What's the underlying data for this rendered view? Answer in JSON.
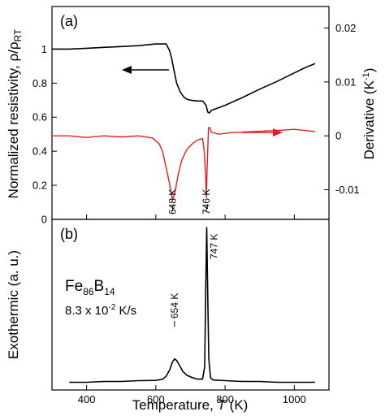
{
  "colors": {
    "black_curve": "#000000",
    "red_curve": "#e02020",
    "arrow_black": "#000000",
    "arrow_red": "#e02020"
  },
  "chart_data": [
    {
      "type": "line",
      "panel_label": "(a)",
      "ylabel": "Normalized resistivity, ρ/ρ",
      "ylabel_sub": "RT",
      "y2label": "Derivative (K",
      "y2label_sup": "-1",
      "y2label_end": ")",
      "xlim": [
        300,
        1100
      ],
      "ylim": [
        0,
        1.25
      ],
      "y2lim": [
        -0.0155,
        0.024
      ],
      "yticks": [
        "0",
        "0.2",
        "0.4",
        "0.6",
        "0.8",
        "1"
      ],
      "y2ticks": [
        "-0.01",
        "0",
        "0.01",
        "0.02"
      ],
      "series": [
        {
          "axis": "left",
          "color": "#000000",
          "x": [
            300,
            350,
            400,
            450,
            500,
            550,
            600,
            620,
            630,
            635,
            640,
            645,
            650,
            655,
            660,
            670,
            680,
            690,
            700,
            720,
            735,
            745,
            750,
            755,
            760,
            800,
            850,
            900,
            950,
            1000,
            1030,
            1060
          ],
          "y": [
            1.0,
            1.0,
            1.005,
            1.01,
            1.015,
            1.02,
            1.03,
            1.03,
            1.03,
            1.01,
            0.99,
            0.95,
            0.9,
            0.85,
            0.8,
            0.75,
            0.72,
            0.705,
            0.7,
            0.695,
            0.695,
            0.67,
            0.63,
            0.625,
            0.64,
            0.67,
            0.715,
            0.765,
            0.81,
            0.86,
            0.89,
            0.915
          ]
        },
        {
          "axis": "right",
          "color": "#e02020",
          "x": [
            300,
            350,
            400,
            450,
            500,
            550,
            590,
            610,
            620,
            630,
            640,
            645,
            648,
            652,
            658,
            665,
            675,
            690,
            705,
            720,
            735,
            740,
            744,
            746,
            748,
            752,
            756,
            760,
            780,
            820,
            880,
            950,
            1000,
            1060
          ],
          "y": [
            0.0,
            0.0,
            -0.0003,
            0.0,
            -0.0002,
            0.0,
            -0.0004,
            -0.0015,
            -0.003,
            -0.006,
            -0.009,
            -0.011,
            -0.0117,
            -0.0112,
            -0.0095,
            -0.007,
            -0.0045,
            -0.0025,
            -0.0015,
            -0.0008,
            -0.0005,
            -0.003,
            -0.008,
            -0.0115,
            -0.006,
            0.0015,
            0.0015,
            0.0007,
            0.0003,
            0.0006,
            0.0008,
            0.001,
            0.0012,
            0.0008
          ]
        }
      ],
      "annotations": [
        {
          "text": "648 K",
          "x": 648
        },
        {
          "text": "746 K",
          "x": 746
        }
      ]
    },
    {
      "type": "line",
      "panel_label": "(b)",
      "xlabel": "Temperature, ",
      "xlabel_italic": "T",
      "xlabel_end": " (K)",
      "ylabel": "Exothermic (a. u.)",
      "xticks": [
        "400",
        "600",
        "800",
        "1000"
      ],
      "xlim": [
        300,
        1100
      ],
      "ylim": [
        -0.05,
        1.05
      ],
      "compound_base": "Fe",
      "compound_sub1": "86",
      "compound_mid": "B",
      "compound_sub2": "14",
      "rate_text": "8.3 x 10",
      "rate_sup": "-2",
      "rate_end": " K/s",
      "series": [
        {
          "color": "#000000",
          "x": [
            350,
            400,
            450,
            500,
            550,
            600,
            620,
            630,
            640,
            648,
            654,
            660,
            668,
            678,
            690,
            705,
            720,
            735,
            741,
            744,
            747,
            750,
            753,
            758,
            765,
            800,
            850,
            900,
            950,
            1000,
            1060
          ],
          "y": [
            0.0,
            0.0,
            0.005,
            0.005,
            0.01,
            0.012,
            0.02,
            0.04,
            0.08,
            0.13,
            0.15,
            0.14,
            0.11,
            0.07,
            0.045,
            0.03,
            0.02,
            0.02,
            0.1,
            0.6,
            1.0,
            0.55,
            0.15,
            0.03,
            0.015,
            0.01,
            0.005,
            0.005,
            0.0,
            0.0,
            0.0
          ]
        }
      ],
      "annotations": [
        {
          "text": "654 K",
          "x": 654
        },
        {
          "text": "747 K",
          "x": 747
        }
      ]
    }
  ]
}
